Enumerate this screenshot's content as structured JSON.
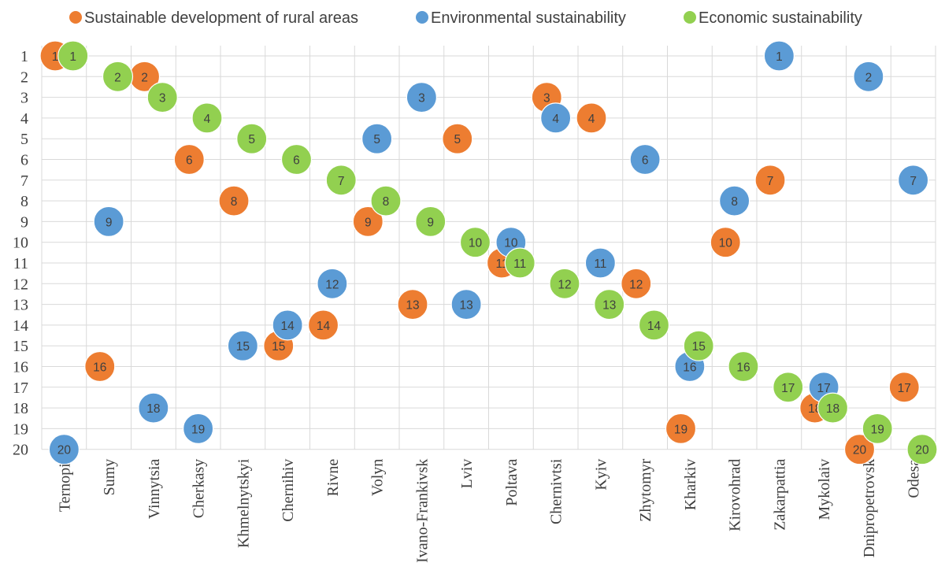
{
  "chart_data": {
    "type": "scatter",
    "title": "",
    "xlabel": "",
    "ylabel": "",
    "ylim": [
      1,
      20
    ],
    "y_inverted": true,
    "grid": true,
    "legend_position": "top",
    "categories": [
      "Ternopil",
      "Sumy",
      "Vinnytsia",
      "Cherkasy",
      "Khmelnytskyi",
      "Chernihiv",
      "Rivne",
      "Volyn",
      "Ivano-Frankivsk",
      "Lviv",
      "Poltava",
      "Chernivtsi",
      "Kyiv",
      "Zhytomyr",
      "Kharkiv",
      "Kirovohrad",
      "Zakarpattia",
      "Mykolaiv",
      "Dnipropetrovsk",
      "Odesa"
    ],
    "y_ticks": [
      1,
      2,
      3,
      4,
      5,
      6,
      7,
      8,
      9,
      10,
      11,
      12,
      13,
      14,
      15,
      16,
      17,
      18,
      19,
      20
    ],
    "series": [
      {
        "name": "Sustainable development of rural areas",
        "color": "#ED7D31",
        "x_offset": -0.2,
        "values": [
          1,
          16,
          2,
          6,
          8,
          15,
          14,
          9,
          13,
          5,
          11,
          3,
          4,
          12,
          19,
          10,
          7,
          18,
          20,
          17
        ]
      },
      {
        "name": "Environmental sustainability",
        "color": "#5B9BD5",
        "x_offset": 0,
        "values": [
          20,
          9,
          18,
          19,
          15,
          14,
          12,
          5,
          3,
          13,
          10,
          4,
          11,
          6,
          16,
          8,
          1,
          17,
          2,
          7
        ]
      },
      {
        "name": "Economic sustainability",
        "color": "#92D050",
        "x_offset": 0.2,
        "values": [
          1,
          2,
          3,
          4,
          5,
          6,
          7,
          8,
          9,
          10,
          11,
          12,
          13,
          14,
          15,
          16,
          17,
          18,
          19,
          20
        ]
      }
    ]
  }
}
